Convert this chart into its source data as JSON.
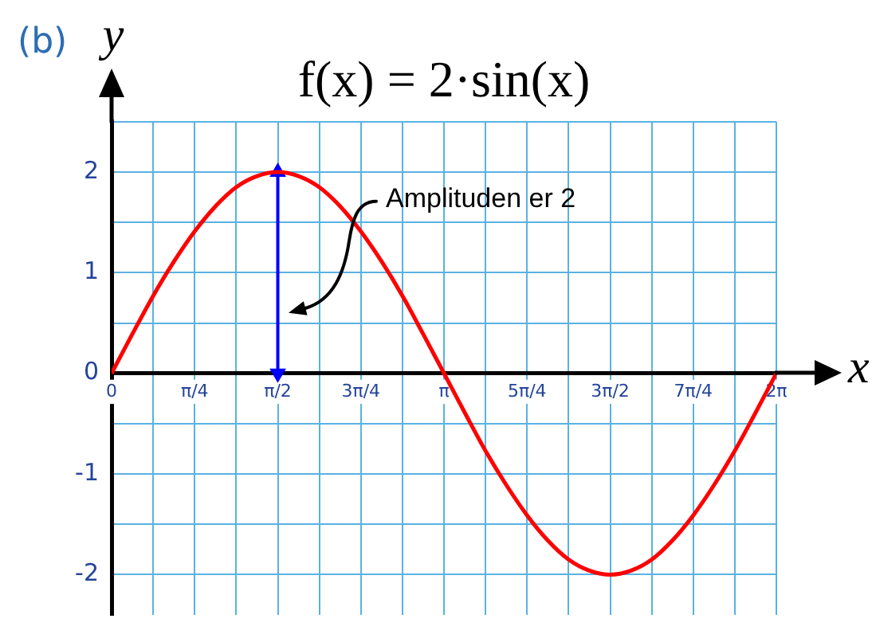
{
  "chart_data": {
    "type": "line",
    "title": "f(x) = 2·sin(x)",
    "xlabel": "x",
    "ylabel": "y",
    "annotations": [
      "(b)",
      "Amplituden er 2"
    ],
    "series": [
      {
        "color": "#ff0000",
        "x": [
          0,
          0.196,
          0.393,
          0.589,
          0.785,
          0.982,
          1.178,
          1.374,
          1.571,
          1.767,
          1.963,
          2.16,
          2.356,
          2.553,
          2.749,
          2.945,
          3.142,
          3.338,
          3.534,
          3.731,
          3.927,
          4.123,
          4.32,
          4.516,
          4.712,
          4.909,
          5.105,
          5.301,
          5.498,
          5.694,
          5.89,
          6.087,
          6.283
        ],
        "values": [
          0,
          0.39,
          0.77,
          1.11,
          1.41,
          1.66,
          1.85,
          1.96,
          2,
          1.96,
          1.85,
          1.66,
          1.41,
          1.11,
          0.77,
          0.39,
          0,
          -0.39,
          -0.77,
          -1.11,
          -1.41,
          -1.66,
          -1.85,
          -1.96,
          -2,
          -1.96,
          -1.85,
          -1.66,
          -1.41,
          -1.11,
          -0.77,
          -0.39,
          0
        ]
      },
      {
        "color": "#0000ff",
        "x": [
          1.571,
          1.571
        ],
        "values": [
          0,
          2
        ],
        "marker": "triangle"
      }
    ],
    "xlim": [
      0,
      6.2832
    ],
    "xticks": [
      0,
      {
        "value": 0.3927,
        "label": null
      },
      {
        "value": 0.7854,
        "label": "π/4"
      },
      {
        "value": 1.1781,
        "label": null
      },
      {
        "value": 1.5708,
        "label": "π/2"
      },
      {
        "value": 1.9635,
        "label": null
      },
      {
        "value": 2.3562,
        "label": "3π/4"
      },
      {
        "value": 2.7489,
        "label": null
      },
      {
        "value": 3.1416,
        "label": "π"
      },
      {
        "value": 3.5343,
        "label": null
      },
      {
        "value": 3.927,
        "label": "5π/4"
      },
      {
        "value": 4.3197,
        "label": null
      },
      {
        "value": 4.7124,
        "label": "3π/2"
      },
      {
        "value": 5.1051,
        "label": null
      },
      {
        "value": 5.4978,
        "label": "7π/4"
      },
      {
        "value": 5.8905,
        "label": null
      },
      {
        "value": 6.2832,
        "label": "2π"
      }
    ],
    "ylim": [
      -2.4,
      2.5
    ],
    "yticks": [
      -2,
      {
        "value": -1.5,
        "label": null
      },
      -1,
      {
        "value": -0.5,
        "label": null
      },
      0,
      {
        "value": 0.5,
        "label": null
      },
      1,
      {
        "value": 1.5,
        "label": null
      },
      2,
      {
        "value": 2.5,
        "label": null
      }
    ],
    "grid": true
  }
}
